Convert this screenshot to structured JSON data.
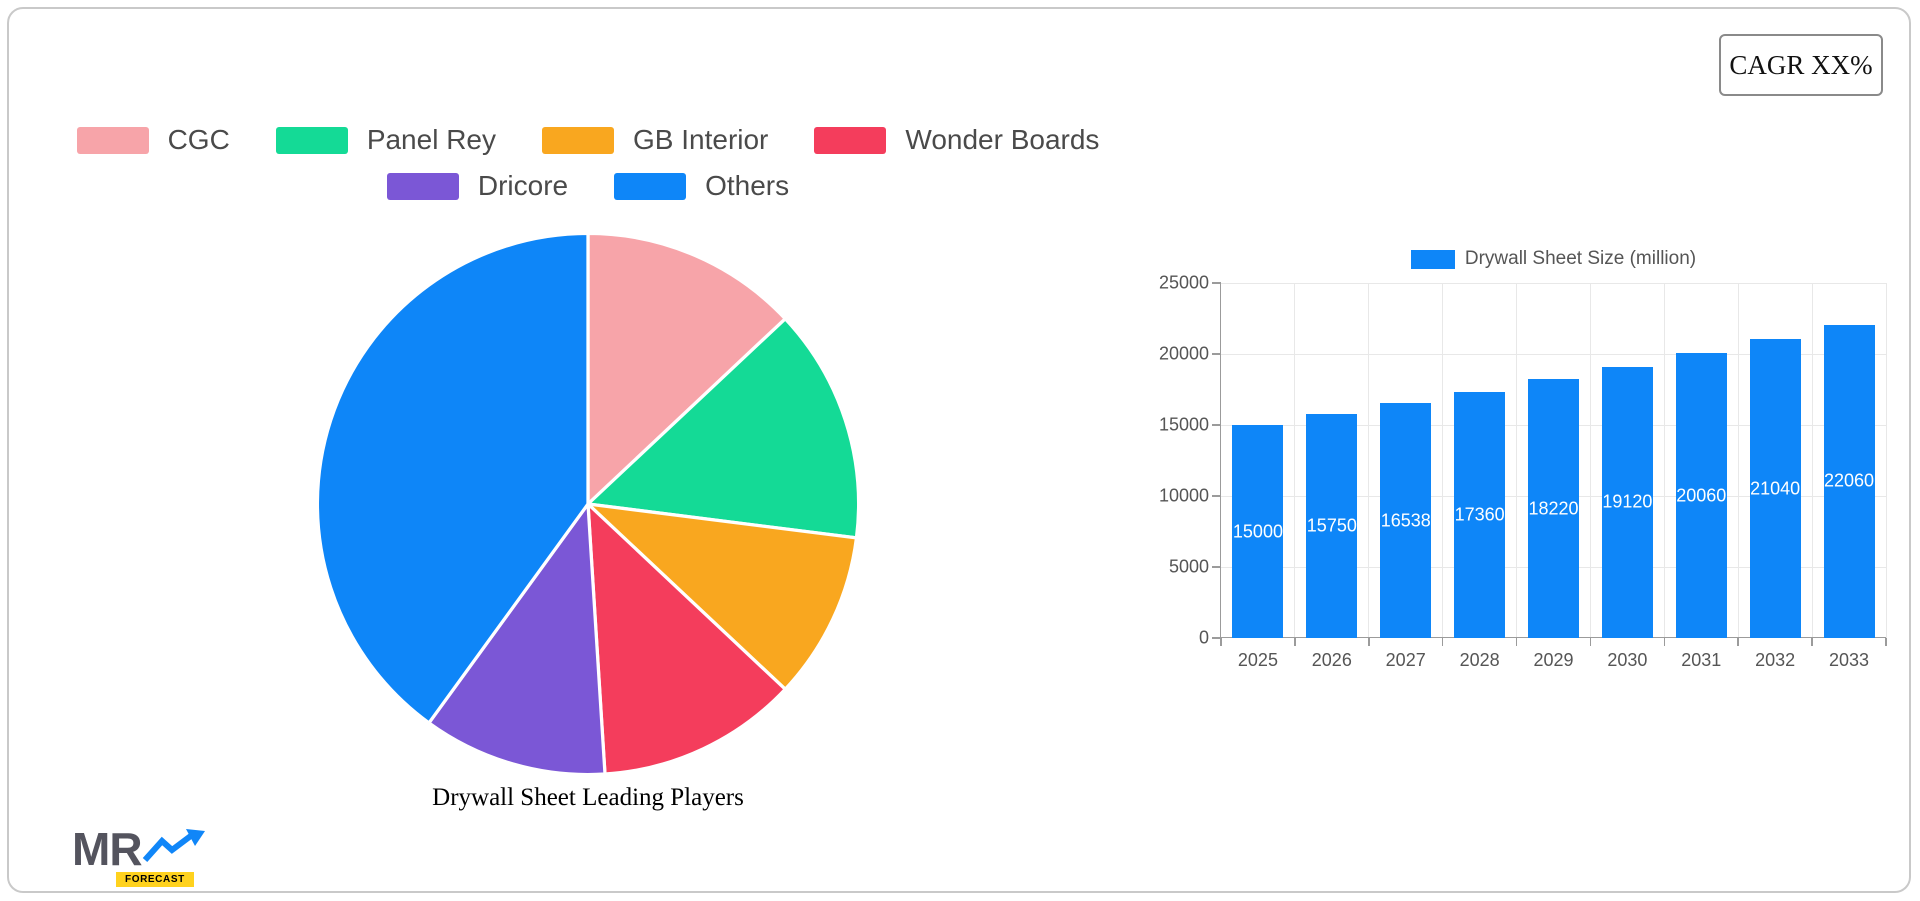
{
  "header": {
    "cagr": "CAGR XX%"
  },
  "logo": {
    "mr": "MR",
    "forecast": "FORECAST"
  },
  "chart_data": [
    {
      "type": "pie",
      "title": "Drywall Sheet Leading Players",
      "labels": [
        "CGC",
        "Panel Rey",
        "GB Interior",
        "Wonder Boards",
        "Dricore",
        "Others"
      ],
      "values": [
        13,
        14,
        10,
        12,
        11,
        40
      ],
      "colors": [
        "#f7a4a9",
        "#14da96",
        "#f9a71f",
        "#f43d5c",
        "#7b57d6",
        "#0e86f8"
      ],
      "legend_position": "top",
      "start_angle_deg": 0,
      "direction": "clockwise"
    },
    {
      "type": "bar",
      "legend_label": "Drywall Sheet Size (million)",
      "categories": [
        "2025",
        "2026",
        "2027",
        "2028",
        "2029",
        "2030",
        "2031",
        "2032",
        "2033"
      ],
      "values": [
        15000,
        15750,
        16538,
        17360,
        18220,
        19120,
        20060,
        21040,
        22060
      ],
      "bar_color": "#0e86f8",
      "value_label_color": "#ffffff",
      "y_ticks": [
        0,
        5000,
        10000,
        15000,
        20000,
        25000
      ],
      "ylim": [
        0,
        25000
      ],
      "grid": true,
      "legend_position": "top"
    }
  ]
}
